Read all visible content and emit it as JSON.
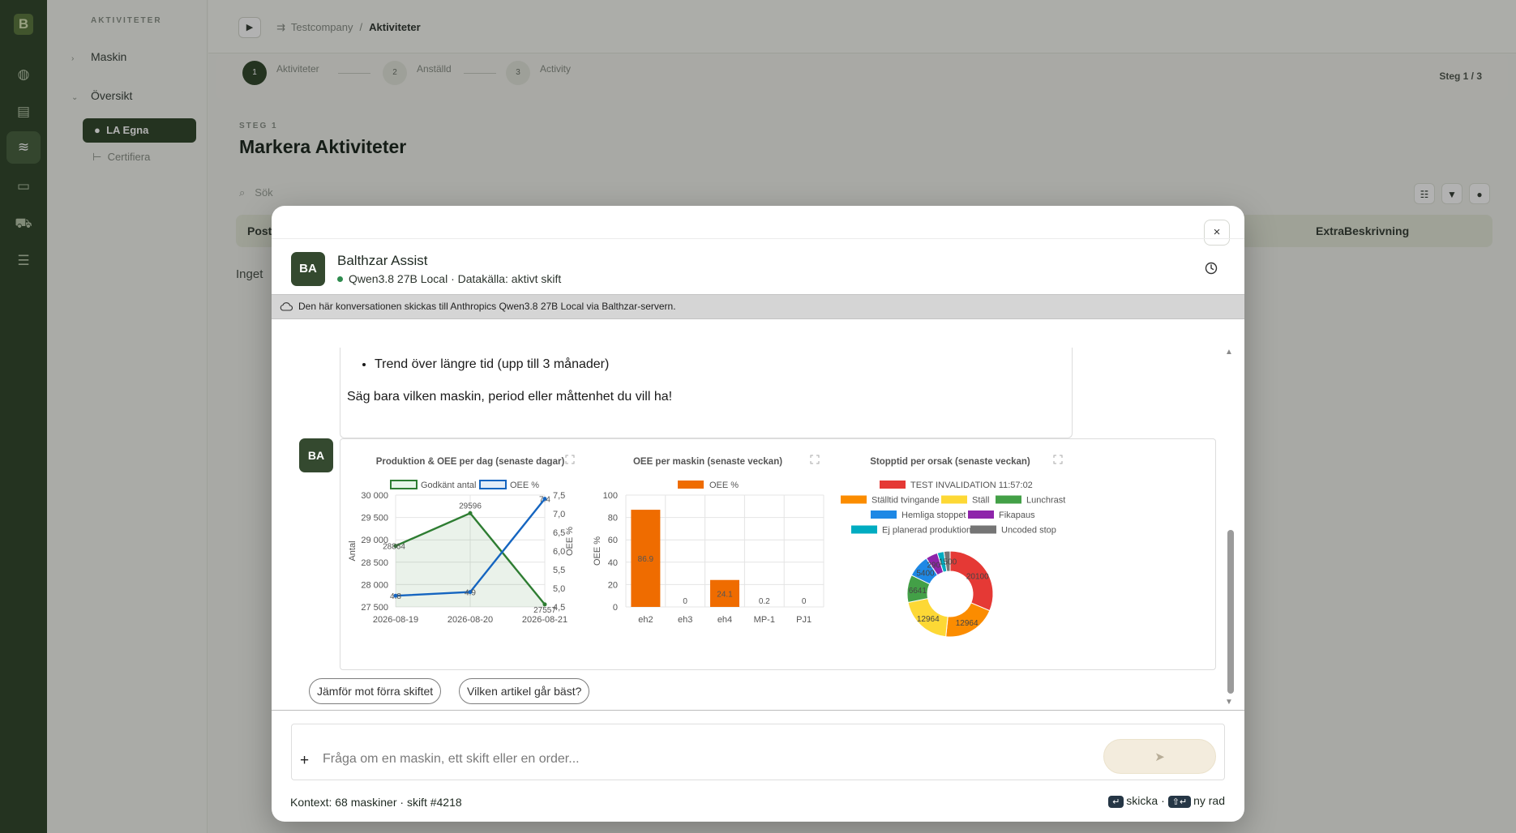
{
  "app": {
    "logo_letter": "B",
    "rail_icons": [
      "globe-icon",
      "grid-icon",
      "layers-icon",
      "monitor-icon",
      "truck-icon",
      "database-icon"
    ]
  },
  "sidebar": {
    "section_title": "AKTIVITETER",
    "items": [
      {
        "label": "Maskin"
      },
      {
        "label": "Översikt"
      }
    ],
    "active_item": "LA Egna",
    "sub_item": "Certifiera"
  },
  "topbar": {
    "toggle_glyph": "▶",
    "breadcrumb": [
      {
        "label": "Testcompany"
      },
      {
        "label": "Aktiviteter"
      }
    ]
  },
  "steps": {
    "items": [
      {
        "num": "1",
        "label": "Aktiviteter"
      },
      {
        "num": "2",
        "label": "Anställd"
      },
      {
        "num": "3",
        "label": "Activity"
      }
    ],
    "counter": "Steg 1 / 3"
  },
  "page": {
    "kicker": "STEG 1",
    "title": "Markera Aktiviteter",
    "search_placeholder": "Sök",
    "table_first_col": "Post",
    "table_last_col": "ExtraBeskrivning",
    "empty_text": "Inget"
  },
  "modal": {
    "close_glyph": "×",
    "avatar": "BA",
    "name": "Balthzar Assist",
    "subtitle": "Qwen3.8 27B Local · Datakälla: aktivt skift",
    "notice": "Den här konversationen skickas till Anthropics Qwen3.8 27B Local via Balthzar-servern.",
    "previous_message": {
      "bullet": "Trend över längre tid (upp till 3 månader)",
      "closing": "Säg bara vilken maskin, period eller måttenhet du vill ha!"
    },
    "suggestions": [
      "Jämför mot förra skiftet",
      "Vilken artikel går bäst?"
    ],
    "composer": {
      "plus": "+",
      "placeholder": "Fråga om en maskin, ett skift eller en order...",
      "value": ""
    },
    "context": "Kontext: 68 maskiner · skift #4218",
    "shortcuts": {
      "send_key": "↵",
      "send_label": "skicka ·",
      "newline_key": "⇧↵",
      "newline_label": "ny rad"
    }
  },
  "chart_data": [
    {
      "type": "line",
      "title": "Produktion & OEE per dag (senaste dagar)",
      "x": [
        "2026-08-19",
        "2026-08-20",
        "2026-08-21"
      ],
      "series": [
        {
          "name": "Godkänt antal",
          "axis": "left",
          "values": [
            28864,
            29596,
            27557
          ],
          "color": "#2e7d32",
          "fill": true
        },
        {
          "name": "OEE %",
          "axis": "right",
          "values": [
            4.8,
            4.9,
            7.4
          ],
          "color": "#1565c0"
        }
      ],
      "ylabel": "Antal",
      "ylim": [
        27500,
        30000
      ],
      "yticks": [
        "27 500",
        "28 000",
        "28 500",
        "29 000",
        "29 500",
        "30 000"
      ],
      "y2label": "OEE %",
      "y2lim": [
        4.5,
        7.5
      ],
      "y2ticks": [
        "4,5",
        "5,0",
        "5,5",
        "6,0",
        "6,5",
        "7,0",
        "7,5"
      ],
      "point_labels": [
        [
          "28864",
          "29596",
          "27557"
        ],
        [
          "4.8",
          "4.9",
          "7.4"
        ]
      ]
    },
    {
      "type": "bar",
      "title": "OEE per maskin (senaste veckan)",
      "categories": [
        "eh2",
        "eh3",
        "eh4",
        "MP-1",
        "PJ1"
      ],
      "series": [
        {
          "name": "OEE %",
          "values": [
            86.9,
            0,
            24.1,
            0.2,
            0
          ],
          "color": "#ef6c00"
        }
      ],
      "value_labels": [
        "86.9",
        "0",
        "24.1",
        "0.2",
        "0"
      ],
      "ylabel": "OEE %",
      "ylim": [
        0,
        100
      ],
      "yticks": [
        "0",
        "20",
        "40",
        "60",
        "80",
        "100"
      ]
    },
    {
      "type": "pie",
      "title": "Stopptid per orsak (senaste veckan)",
      "labels": [
        "TEST INVALIDATION 11:57:02",
        "Ställtid tvingande",
        "Ställ",
        "Lunchrast",
        "Hemliga stoppet",
        "Fikapaus",
        "Ej planerad produktion",
        "Uncoded stop"
      ],
      "values": [
        20100,
        12964,
        12964,
        6641,
        5400,
        2900,
        1600,
        1500
      ],
      "colors": [
        "#e53935",
        "#fb8c00",
        "#fdd835",
        "#43a047",
        "#1e88e5",
        "#8e24aa",
        "#00acc1",
        "#757575"
      ],
      "slice_labels": [
        "20100",
        "12964",
        "12964",
        "6641",
        "5400",
        "2900",
        "",
        "1500"
      ]
    }
  ]
}
